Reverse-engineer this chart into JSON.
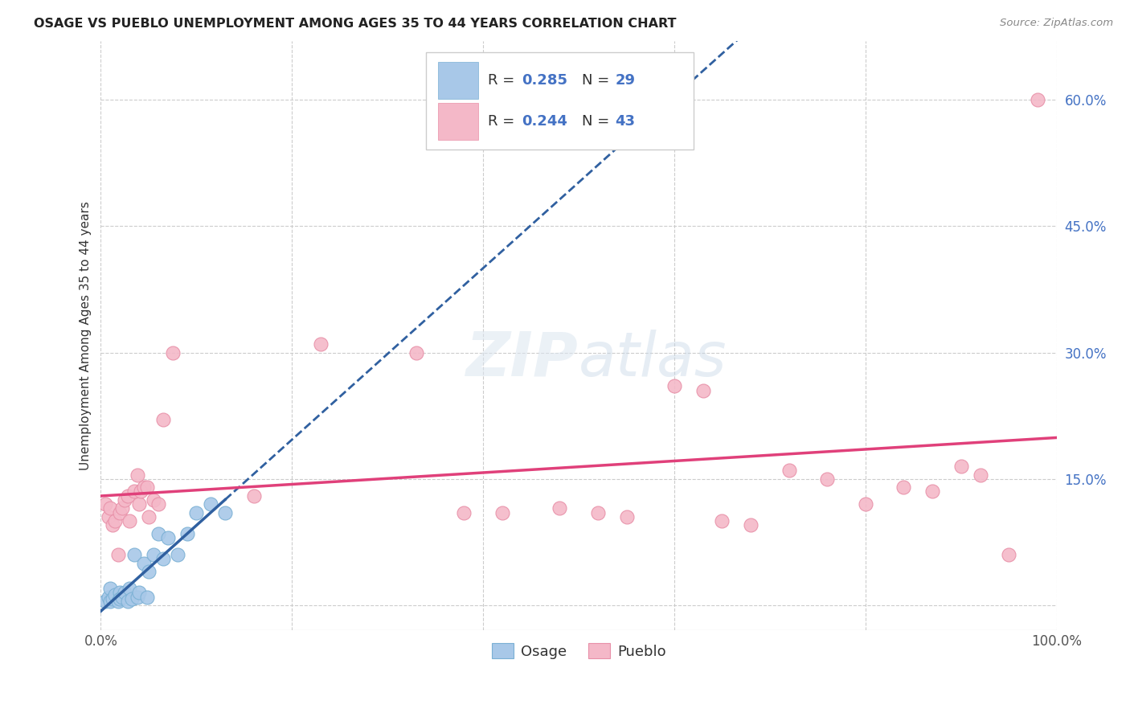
{
  "title": "OSAGE VS PUEBLO UNEMPLOYMENT AMONG AGES 35 TO 44 YEARS CORRELATION CHART",
  "source": "Source: ZipAtlas.com",
  "ylabel": "Unemployment Among Ages 35 to 44 years",
  "xlim": [
    0,
    1.0
  ],
  "ylim": [
    -0.03,
    0.67
  ],
  "xticks": [
    0.0,
    0.2,
    0.4,
    0.6,
    0.8,
    1.0
  ],
  "xticklabels": [
    "0.0%",
    "",
    "",
    "",
    "",
    "100.0%"
  ],
  "yticks": [
    0.0,
    0.15,
    0.3,
    0.45,
    0.6
  ],
  "yticklabels": [
    "",
    "15.0%",
    "30.0%",
    "45.0%",
    "60.0%"
  ],
  "background_color": "#ffffff",
  "grid_color": "#cccccc",
  "osage_color": "#a8c8e8",
  "osage_edge_color": "#7ab0d4",
  "pueblo_color": "#f4b8c8",
  "pueblo_edge_color": "#e890a8",
  "osage_line_color": "#3060a0",
  "pueblo_line_color": "#e0407a",
  "tick_color": "#4472c4",
  "legend_text_color": "#4472c4",
  "osage_scatter_x": [
    0.005,
    0.008,
    0.01,
    0.01,
    0.012,
    0.015,
    0.018,
    0.02,
    0.02,
    0.022,
    0.025,
    0.028,
    0.03,
    0.032,
    0.035,
    0.038,
    0.04,
    0.045,
    0.048,
    0.05,
    0.055,
    0.06,
    0.065,
    0.07,
    0.08,
    0.09,
    0.1,
    0.115,
    0.13
  ],
  "osage_scatter_y": [
    0.005,
    0.01,
    0.005,
    0.02,
    0.008,
    0.012,
    0.005,
    0.015,
    0.008,
    0.01,
    0.015,
    0.005,
    0.02,
    0.008,
    0.06,
    0.01,
    0.015,
    0.05,
    0.01,
    0.04,
    0.06,
    0.085,
    0.055,
    0.08,
    0.06,
    0.085,
    0.11,
    0.12,
    0.11
  ],
  "pueblo_scatter_x": [
    0.005,
    0.008,
    0.01,
    0.012,
    0.015,
    0.018,
    0.02,
    0.022,
    0.025,
    0.028,
    0.03,
    0.035,
    0.038,
    0.04,
    0.042,
    0.045,
    0.048,
    0.05,
    0.055,
    0.06,
    0.065,
    0.075,
    0.16,
    0.23,
    0.33,
    0.38,
    0.42,
    0.48,
    0.52,
    0.55,
    0.6,
    0.63,
    0.65,
    0.68,
    0.72,
    0.76,
    0.8,
    0.84,
    0.87,
    0.9,
    0.92,
    0.95,
    0.98
  ],
  "pueblo_scatter_y": [
    0.12,
    0.105,
    0.115,
    0.095,
    0.1,
    0.06,
    0.11,
    0.115,
    0.125,
    0.13,
    0.1,
    0.135,
    0.155,
    0.12,
    0.135,
    0.14,
    0.14,
    0.105,
    0.125,
    0.12,
    0.22,
    0.3,
    0.13,
    0.31,
    0.3,
    0.11,
    0.11,
    0.115,
    0.11,
    0.105,
    0.26,
    0.255,
    0.1,
    0.095,
    0.16,
    0.15,
    0.12,
    0.14,
    0.135,
    0.165,
    0.155,
    0.06,
    0.6
  ]
}
